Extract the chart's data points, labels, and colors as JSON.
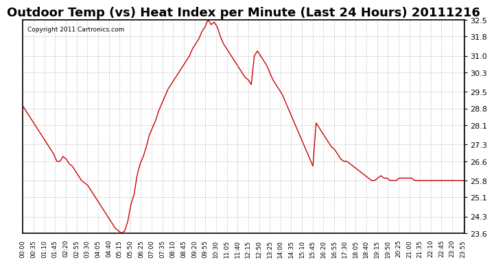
{
  "title": "Outdoor Temp (vs) Heat Index per Minute (Last 24 Hours) 20111216",
  "copyright_text": "Copyright 2011 Cartronics.com",
  "ylabel_right": "",
  "yticks": [
    23.6,
    24.3,
    25.1,
    25.8,
    26.6,
    27.3,
    28.1,
    28.8,
    29.5,
    30.3,
    31.0,
    31.8,
    32.5
  ],
  "ymin": 23.6,
  "ymax": 32.5,
  "line_color": "#cc0000",
  "bg_color": "#ffffff",
  "grid_color": "#aaaaaa",
  "title_fontsize": 13,
  "xtick_labels": [
    "00:00",
    "00:35",
    "01:10",
    "01:45",
    "02:20",
    "02:55",
    "03:30",
    "04:05",
    "04:40",
    "05:15",
    "05:50",
    "06:25",
    "07:00",
    "07:35",
    "08:10",
    "08:45",
    "09:20",
    "09:55",
    "10:30",
    "11:05",
    "11:40",
    "12:15",
    "12:50",
    "13:25",
    "14:00",
    "14:35",
    "15:10",
    "15:45",
    "16:20",
    "16:55",
    "17:30",
    "18:05",
    "18:40",
    "19:15",
    "19:50",
    "20:25",
    "21:00",
    "21:35",
    "22:10",
    "22:45",
    "23:20",
    "23:55"
  ],
  "data_y": [
    28.9,
    28.7,
    28.5,
    28.3,
    28.1,
    27.9,
    27.7,
    27.5,
    27.3,
    27.1,
    26.9,
    26.6,
    26.6,
    26.8,
    26.7,
    26.5,
    26.4,
    26.2,
    26.0,
    25.8,
    25.7,
    25.6,
    25.4,
    25.2,
    25.0,
    24.8,
    24.6,
    24.4,
    24.2,
    24.0,
    23.8,
    23.7,
    23.6,
    23.7,
    24.1,
    24.8,
    25.2,
    26.0,
    26.5,
    26.8,
    27.2,
    27.7,
    28.0,
    28.3,
    28.7,
    29.0,
    29.3,
    29.6,
    29.8,
    30.0,
    30.2,
    30.4,
    30.6,
    30.8,
    31.0,
    31.3,
    31.5,
    31.7,
    32.0,
    32.2,
    32.5,
    32.3,
    32.4,
    32.2,
    31.8,
    31.5,
    31.3,
    31.1,
    30.9,
    30.7,
    30.5,
    30.3,
    30.1,
    30.0,
    29.8,
    31.0,
    31.2,
    31.0,
    30.8,
    30.6,
    30.3,
    30.0,
    29.8,
    29.6,
    29.4,
    29.1,
    28.8,
    28.5,
    28.2,
    27.9,
    27.6,
    27.3,
    27.0,
    26.7,
    26.4,
    28.2,
    28.0,
    27.8,
    27.6,
    27.4,
    27.2,
    27.1,
    26.9,
    26.7,
    26.6,
    26.6,
    26.5,
    26.4,
    26.3,
    26.2,
    26.1,
    26.0,
    25.9,
    25.8,
    25.8,
    25.9,
    26.0,
    25.9,
    25.9,
    25.8,
    25.8,
    25.8,
    25.9,
    25.9,
    25.9,
    25.9,
    25.9,
    25.8,
    25.8,
    25.8,
    25.8,
    25.8,
    25.8,
    25.8,
    25.8,
    25.8,
    25.8,
    25.8,
    25.8,
    25.8,
    25.8,
    25.8,
    25.8,
    25.8
  ]
}
